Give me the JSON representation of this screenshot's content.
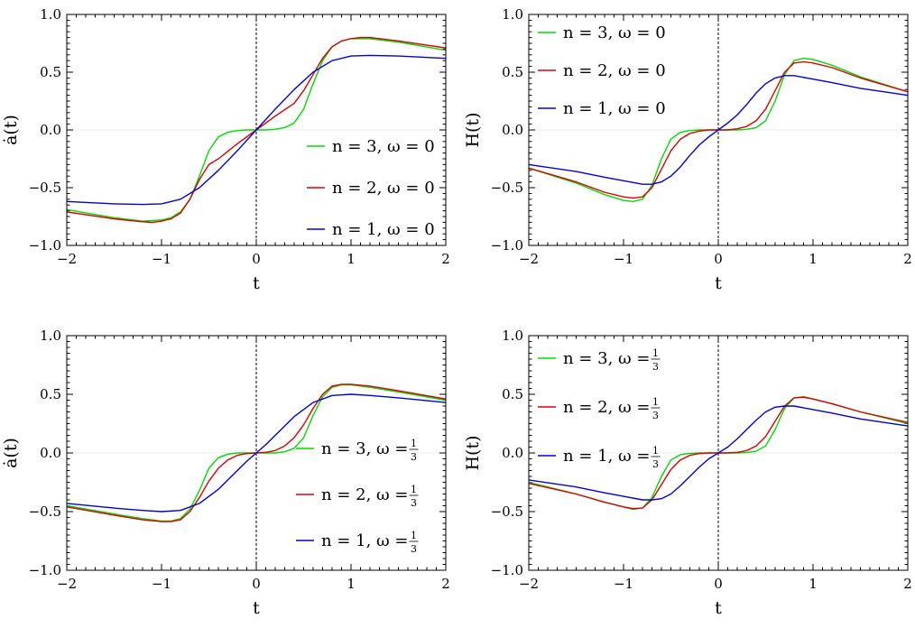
{
  "chart_data": [
    {
      "type": "line",
      "xlabel": "t",
      "ylabel": "ȧ(t)",
      "xlim": [
        -2,
        2
      ],
      "ylim": [
        -1,
        1
      ],
      "xticks": [
        "−2",
        "−1",
        "0",
        "1",
        "2"
      ],
      "yticks": [
        "−1.0",
        "−0.5",
        "0.0",
        "0.5",
        "1.0"
      ],
      "legend_position": "center-right",
      "reference_line": {
        "x": 0,
        "style": "dashed"
      },
      "series": [
        {
          "name": "n = 3, ω = 0",
          "color": "#00dd00",
          "x": [
            -2,
            -1.5,
            -1.2,
            -1,
            -0.9,
            -0.8,
            -0.7,
            -0.6,
            -0.5,
            -0.4,
            -0.3,
            -0.2,
            -0.1,
            0,
            0.1,
            0.2,
            0.3,
            0.4,
            0.5,
            0.6,
            0.7,
            0.8,
            0.9,
            1,
            1.2,
            1.5,
            2
          ],
          "y": [
            -0.69,
            -0.76,
            -0.79,
            -0.78,
            -0.76,
            -0.71,
            -0.6,
            -0.4,
            -0.18,
            -0.06,
            -0.02,
            -0.005,
            0,
            0,
            0,
            0.005,
            0.02,
            0.06,
            0.18,
            0.4,
            0.6,
            0.72,
            0.77,
            0.79,
            0.79,
            0.76,
            0.69
          ]
        },
        {
          "name": "n = 2, ω = 0",
          "color": "#dd0000",
          "x": [
            -2,
            -1.5,
            -1.2,
            -1.1,
            -1,
            -0.9,
            -0.8,
            -0.7,
            -0.6,
            -0.5,
            -0.4,
            -0.2,
            0,
            0.2,
            0.4,
            0.5,
            0.6,
            0.7,
            0.8,
            0.9,
            1,
            1.1,
            1.2,
            1.5,
            2
          ],
          "y": [
            -0.71,
            -0.77,
            -0.795,
            -0.8,
            -0.79,
            -0.77,
            -0.72,
            -0.6,
            -0.43,
            -0.3,
            -0.25,
            -0.12,
            0,
            0.12,
            0.23,
            0.34,
            0.48,
            0.62,
            0.72,
            0.77,
            0.79,
            0.8,
            0.8,
            0.77,
            0.71
          ]
        },
        {
          "name": "n = 1, ω = 0",
          "color": "#0000dd",
          "x": [
            -2,
            -1.5,
            -1.2,
            -1,
            -0.8,
            -0.6,
            -0.4,
            -0.2,
            0,
            0.2,
            0.4,
            0.6,
            0.8,
            1,
            1.2,
            1.5,
            2
          ],
          "y": [
            -0.62,
            -0.64,
            -0.645,
            -0.64,
            -0.6,
            -0.5,
            -0.35,
            -0.18,
            0,
            0.18,
            0.35,
            0.5,
            0.6,
            0.64,
            0.645,
            0.64,
            0.62
          ]
        }
      ]
    },
    {
      "type": "line",
      "xlabel": "t",
      "ylabel": "H(t)",
      "xlim": [
        -2,
        2
      ],
      "ylim": [
        -1,
        1
      ],
      "xticks": [
        "−2",
        "−1",
        "0",
        "1",
        "2"
      ],
      "yticks": [
        "−1.0",
        "−0.5",
        "0.0",
        "0.5",
        "1.0"
      ],
      "legend_position": "top-left",
      "reference_line": {
        "x": 0,
        "style": "dashed"
      },
      "series": [
        {
          "name": "n = 3, ω = 0",
          "color": "#00dd00",
          "x": [
            -2,
            -1.5,
            -1.2,
            -1,
            -0.9,
            -0.8,
            -0.7,
            -0.6,
            -0.5,
            -0.4,
            -0.3,
            -0.2,
            -0.1,
            0,
            0.1,
            0.2,
            0.3,
            0.4,
            0.5,
            0.6,
            0.7,
            0.8,
            0.9,
            1,
            1.2,
            1.5,
            2
          ],
          "y": [
            -0.33,
            -0.46,
            -0.56,
            -0.61,
            -0.62,
            -0.6,
            -0.48,
            -0.25,
            -0.08,
            -0.02,
            -0.005,
            0,
            0,
            0,
            0,
            0,
            0.005,
            0.02,
            0.08,
            0.25,
            0.48,
            0.6,
            0.62,
            0.61,
            0.56,
            0.46,
            0.33
          ]
        },
        {
          "name": "n = 2, ω = 0",
          "color": "#dd0000",
          "x": [
            -2,
            -1.5,
            -1.2,
            -1,
            -0.9,
            -0.8,
            -0.7,
            -0.6,
            -0.5,
            -0.4,
            -0.3,
            -0.2,
            -0.1,
            0,
            0.1,
            0.2,
            0.3,
            0.4,
            0.5,
            0.6,
            0.7,
            0.8,
            0.9,
            1,
            1.2,
            1.5,
            2
          ],
          "y": [
            -0.33,
            -0.45,
            -0.54,
            -0.58,
            -0.59,
            -0.58,
            -0.5,
            -0.34,
            -0.18,
            -0.08,
            -0.03,
            -0.01,
            0,
            0,
            0,
            0.01,
            0.03,
            0.08,
            0.18,
            0.34,
            0.5,
            0.58,
            0.59,
            0.58,
            0.54,
            0.45,
            0.33
          ]
        },
        {
          "name": "n = 1, ω = 0",
          "color": "#0000dd",
          "x": [
            -2,
            -1.5,
            -1.2,
            -1,
            -0.8,
            -0.7,
            -0.6,
            -0.5,
            -0.4,
            -0.3,
            -0.2,
            -0.1,
            0,
            0.1,
            0.2,
            0.3,
            0.4,
            0.5,
            0.6,
            0.7,
            0.8,
            1,
            1.2,
            1.5,
            2
          ],
          "y": [
            -0.3,
            -0.36,
            -0.41,
            -0.44,
            -0.47,
            -0.47,
            -0.45,
            -0.4,
            -0.32,
            -0.22,
            -0.13,
            -0.06,
            0,
            0.06,
            0.13,
            0.22,
            0.32,
            0.4,
            0.45,
            0.47,
            0.47,
            0.44,
            0.41,
            0.36,
            0.3
          ]
        }
      ]
    },
    {
      "type": "line",
      "xlabel": "t",
      "ylabel": "ȧ(t)",
      "xlim": [
        -2,
        2
      ],
      "ylim": [
        -1,
        1
      ],
      "xticks": [
        "−2",
        "−1",
        "0",
        "1",
        "2"
      ],
      "yticks": [
        "−1.0",
        "−0.5",
        "0.0",
        "0.5",
        "1.0"
      ],
      "legend_position": "center-right",
      "reference_line": {
        "x": 0,
        "style": "dashed"
      },
      "series": [
        {
          "name": "n = 3, ω = 1/3",
          "color": "#00dd00",
          "x": [
            -2,
            -1.5,
            -1.2,
            -1,
            -0.9,
            -0.8,
            -0.7,
            -0.6,
            -0.5,
            -0.4,
            -0.3,
            -0.2,
            -0.1,
            0,
            0.1,
            0.2,
            0.3,
            0.4,
            0.5,
            0.6,
            0.7,
            0.8,
            0.9,
            1,
            1.2,
            1.5,
            2
          ],
          "y": [
            -0.45,
            -0.52,
            -0.56,
            -0.58,
            -0.58,
            -0.56,
            -0.48,
            -0.32,
            -0.13,
            -0.04,
            -0.01,
            0,
            0,
            0,
            0,
            0,
            0.01,
            0.04,
            0.13,
            0.32,
            0.48,
            0.56,
            0.58,
            0.58,
            0.56,
            0.52,
            0.45
          ]
        },
        {
          "name": "n = 2, ω = 1/3",
          "color": "#dd0000",
          "x": [
            -2,
            -1.5,
            -1.2,
            -1,
            -0.9,
            -0.8,
            -0.7,
            -0.6,
            -0.5,
            -0.4,
            -0.3,
            -0.2,
            -0.1,
            0,
            0.1,
            0.2,
            0.3,
            0.4,
            0.5,
            0.6,
            0.7,
            0.8,
            0.9,
            1,
            1.2,
            1.5,
            2
          ],
          "y": [
            -0.46,
            -0.53,
            -0.57,
            -0.585,
            -0.585,
            -0.57,
            -0.5,
            -0.38,
            -0.24,
            -0.13,
            -0.06,
            -0.02,
            -0.005,
            0,
            0.005,
            0.02,
            0.06,
            0.13,
            0.24,
            0.38,
            0.5,
            0.57,
            0.585,
            0.585,
            0.57,
            0.53,
            0.46
          ]
        },
        {
          "name": "n = 1, ω = 1/3",
          "color": "#0000dd",
          "x": [
            -2,
            -1.5,
            -1.2,
            -1,
            -0.8,
            -0.6,
            -0.4,
            -0.3,
            -0.2,
            -0.1,
            0,
            0.1,
            0.2,
            0.3,
            0.4,
            0.6,
            0.8,
            1,
            1.2,
            1.5,
            2
          ],
          "y": [
            -0.43,
            -0.47,
            -0.49,
            -0.5,
            -0.49,
            -0.43,
            -0.31,
            -0.23,
            -0.15,
            -0.07,
            0,
            0.07,
            0.15,
            0.23,
            0.31,
            0.43,
            0.49,
            0.5,
            0.49,
            0.47,
            0.43
          ]
        }
      ]
    },
    {
      "type": "line",
      "xlabel": "t",
      "ylabel": "H(t)",
      "xlim": [
        -2,
        2
      ],
      "ylim": [
        -1,
        1
      ],
      "xticks": [
        "−2",
        "−1",
        "0",
        "1",
        "2"
      ],
      "yticks": [
        "−1.0",
        "−0.5",
        "0.0",
        "0.5",
        "1.0"
      ],
      "legend_position": "top-left",
      "reference_line": {
        "x": 0,
        "style": "dashed"
      },
      "series": [
        {
          "name": "n = 3, ω = 1/3",
          "color": "#00dd00",
          "x": [
            -2,
            -1.5,
            -1.2,
            -1,
            -0.9,
            -0.8,
            -0.7,
            -0.6,
            -0.5,
            -0.4,
            -0.3,
            -0.2,
            -0.1,
            0,
            0.1,
            0.2,
            0.3,
            0.4,
            0.5,
            0.6,
            0.7,
            0.8,
            0.9,
            1,
            1.2,
            1.5,
            2
          ],
          "y": [
            -0.25,
            -0.35,
            -0.42,
            -0.46,
            -0.48,
            -0.47,
            -0.38,
            -0.2,
            -0.06,
            -0.015,
            -0.003,
            0,
            0,
            0,
            0,
            0,
            0.003,
            0.015,
            0.06,
            0.2,
            0.38,
            0.47,
            0.48,
            0.46,
            0.42,
            0.35,
            0.25
          ]
        },
        {
          "name": "n = 2, ω = 1/3",
          "color": "#dd0000",
          "x": [
            -2,
            -1.5,
            -1.2,
            -1,
            -0.9,
            -0.8,
            -0.7,
            -0.6,
            -0.5,
            -0.4,
            -0.3,
            -0.2,
            -0.1,
            0,
            0.1,
            0.2,
            0.3,
            0.4,
            0.5,
            0.6,
            0.7,
            0.8,
            0.9,
            1,
            1.2,
            1.5,
            2
          ],
          "y": [
            -0.26,
            -0.35,
            -0.42,
            -0.46,
            -0.475,
            -0.47,
            -0.4,
            -0.27,
            -0.14,
            -0.06,
            -0.02,
            -0.005,
            0,
            0,
            0,
            0.005,
            0.02,
            0.06,
            0.14,
            0.27,
            0.4,
            0.47,
            0.475,
            0.46,
            0.42,
            0.35,
            0.26
          ]
        },
        {
          "name": "n = 1, ω = 1/3",
          "color": "#0000dd",
          "x": [
            -2,
            -1.5,
            -1.2,
            -1,
            -0.8,
            -0.7,
            -0.6,
            -0.5,
            -0.4,
            -0.3,
            -0.2,
            -0.1,
            0,
            0.1,
            0.2,
            0.3,
            0.4,
            0.5,
            0.6,
            0.7,
            0.8,
            1,
            1.2,
            1.5,
            2
          ],
          "y": [
            -0.23,
            -0.29,
            -0.34,
            -0.37,
            -0.4,
            -0.4,
            -0.39,
            -0.35,
            -0.28,
            -0.2,
            -0.12,
            -0.05,
            0,
            0.05,
            0.12,
            0.2,
            0.28,
            0.35,
            0.39,
            0.4,
            0.4,
            0.37,
            0.34,
            0.29,
            0.23
          ]
        }
      ]
    }
  ]
}
